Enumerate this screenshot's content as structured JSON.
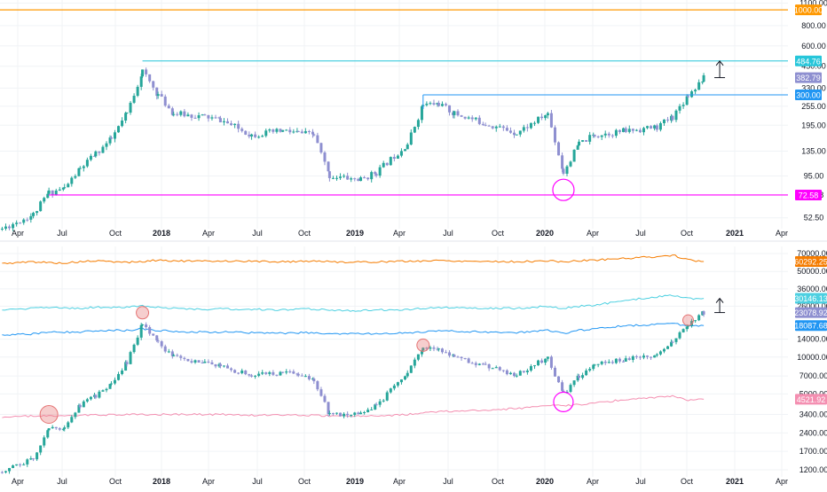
{
  "colors": {
    "bull": "#26a69a",
    "bear": "#8e8fd0",
    "orange_line": "#ff9800",
    "cyan_line": "#26c6da",
    "blue_line": "#2196f3",
    "magenta_line": "#ff00ff",
    "purple_label": "#8e8fd0",
    "bottom_orange": "#f57c00",
    "bottom_cyan": "#4dd0e1",
    "bottom_blue": "#2196f3",
    "bottom_pink": "#f48fb1",
    "gear_red": "#e57373"
  },
  "x_axis": {
    "labels": [
      {
        "text": "Apr",
        "bold": false
      },
      {
        "text": "Jul",
        "bold": false
      },
      {
        "text": "Oct",
        "bold": false
      },
      {
        "text": "2018",
        "bold": true
      },
      {
        "text": "Apr",
        "bold": false
      },
      {
        "text": "Jul",
        "bold": false
      },
      {
        "text": "Oct",
        "bold": false
      },
      {
        "text": "2019",
        "bold": true
      },
      {
        "text": "Apr",
        "bold": false
      },
      {
        "text": "Jul",
        "bold": false
      },
      {
        "text": "Oct",
        "bold": false
      },
      {
        "text": "2020",
        "bold": true
      },
      {
        "text": "Apr",
        "bold": false
      },
      {
        "text": "Jul",
        "bold": false
      },
      {
        "text": "Oct",
        "bold": false
      },
      {
        "text": "2021",
        "bold": true
      },
      {
        "text": "Apr",
        "bold": false
      }
    ]
  },
  "chart_data": [
    {
      "type": "line",
      "panel": "top",
      "scale": "log",
      "grid": true,
      "y_ticks": [
        "1100.00",
        "800.00",
        "600.00",
        "450.00",
        "330.00",
        "255.00",
        "195.00",
        "135.00",
        "95.00",
        "72.58",
        "52.50"
      ],
      "y_tick_values": [
        1100,
        800,
        600,
        450,
        330,
        255,
        195,
        135,
        95,
        72.58,
        52.5
      ],
      "ylim": [
        45,
        1150
      ],
      "price_series": {
        "x": [
          "2017-03",
          "2017-05",
          "2017-06",
          "2017-07",
          "2017-08",
          "2017-09",
          "2017-10",
          "2017-11",
          "2017-12",
          "2018-01",
          "2018-02",
          "2018-04",
          "2018-05",
          "2018-07",
          "2018-09",
          "2018-10",
          "2018-11",
          "2018-12",
          "2019-02",
          "2019-03",
          "2019-05",
          "2019-06",
          "2019-07",
          "2019-08",
          "2019-10",
          "2019-12",
          "2020-02",
          "2020-03",
          "2020-04",
          "2020-05",
          "2020-07",
          "2020-09",
          "2020-10",
          "2020-11",
          "2020-12"
        ],
        "y": [
          45,
          55,
          75,
          80,
          105,
          130,
          160,
          230,
          420,
          300,
          230,
          220,
          210,
          170,
          180,
          175,
          170,
          95,
          90,
          100,
          150,
          260,
          265,
          230,
          200,
          175,
          230,
          100,
          150,
          170,
          180,
          190,
          220,
          300,
          380
        ]
      },
      "horizontal_levels": [
        {
          "value": 1000,
          "label": "1000.00",
          "color_key": "orange_line"
        },
        {
          "value": 484.76,
          "label": "484.76",
          "color_key": "cyan_line"
        },
        {
          "value": 382.79,
          "label": "382.79",
          "color_key": "purple_label"
        },
        {
          "value": 300,
          "label": "300.00",
          "color_key": "blue_line"
        },
        {
          "value": 72.58,
          "label": "72.58",
          "color_key": "magenta_line"
        }
      ]
    },
    {
      "type": "line",
      "panel": "bottom",
      "scale": "log",
      "grid": true,
      "y_ticks": [
        "70000.00",
        "50000.00",
        "36000.00",
        "26000.00",
        "14000.00",
        "10000.00",
        "7000.00",
        "5000.00",
        "3400.00",
        "2400.00",
        "1700.00",
        "1200.00"
      ],
      "y_tick_values": [
        70000,
        50000,
        36000,
        26000,
        14000,
        10000,
        7000,
        5000,
        3400,
        2400,
        1700,
        1200
      ],
      "ylim": [
        1050,
        80000
      ],
      "price_series": {
        "x": [
          "2017-03",
          "2017-05",
          "2017-06",
          "2017-07",
          "2017-08",
          "2017-09",
          "2017-10",
          "2017-11",
          "2017-12",
          "2018-01",
          "2018-02",
          "2018-04",
          "2018-05",
          "2018-07",
          "2018-09",
          "2018-10",
          "2018-11",
          "2018-12",
          "2019-02",
          "2019-03",
          "2019-05",
          "2019-06",
          "2019-07",
          "2019-08",
          "2019-10",
          "2019-12",
          "2020-02",
          "2020-03",
          "2020-04",
          "2020-05",
          "2020-07",
          "2020-09",
          "2020-10",
          "2020-11",
          "2020-12"
        ],
        "y": [
          1150,
          1500,
          2600,
          2700,
          4000,
          4800,
          6000,
          9000,
          19000,
          13000,
          10000,
          9000,
          8500,
          7000,
          7500,
          7300,
          6500,
          3400,
          3500,
          4000,
          7500,
          12000,
          11500,
          10000,
          8500,
          7200,
          10000,
          5000,
          7000,
          9000,
          9500,
          10500,
          13500,
          18000,
          23078.92
        ]
      },
      "series": [
        {
          "name": "60292.25",
          "color_key": "bottom_orange",
          "y": [
            58000,
            60000,
            59000,
            58500,
            60000,
            61000,
            60000,
            59500,
            60000,
            62000,
            61000,
            60500,
            61000,
            60500,
            60000,
            60500,
            61000,
            60000,
            59500,
            60000,
            60500,
            61000,
            61500,
            61000,
            60500,
            60000,
            61000,
            60000,
            61000,
            62000,
            64000,
            66000,
            68000,
            62000,
            60292.25
          ]
        },
        {
          "name": "30146.13",
          "color_key": "bottom_cyan",
          "y": [
            24000,
            25000,
            25500,
            25000,
            25000,
            25500,
            25500,
            25500,
            26000,
            25500,
            25000,
            24500,
            24800,
            24500,
            24200,
            24500,
            24700,
            24000,
            24000,
            24200,
            24500,
            25000,
            25500,
            25200,
            25000,
            25000,
            26000,
            25000,
            26000,
            26500,
            29000,
            31000,
            32000,
            30000,
            30146.13
          ]
        },
        {
          "name": "18087.68",
          "color_key": "bottom_blue",
          "y": [
            15000,
            15500,
            16000,
            16000,
            16000,
            16500,
            16500,
            16500,
            17000,
            16500,
            16200,
            16000,
            16000,
            15800,
            15700,
            15800,
            15800,
            15500,
            15400,
            15500,
            15800,
            16000,
            16500,
            16300,
            16000,
            15800,
            16500,
            15500,
            16500,
            17000,
            18000,
            18500,
            18700,
            18000,
            18087.68
          ]
        },
        {
          "name": "4521.92",
          "color_key": "bottom_pink",
          "y": [
            3200,
            3300,
            3300,
            3350,
            3350,
            3350,
            3400,
            3400,
            3400,
            3400,
            3400,
            3400,
            3400,
            3350,
            3350,
            3350,
            3350,
            3300,
            3300,
            3300,
            3400,
            3500,
            3600,
            3600,
            3700,
            3800,
            4000,
            4000,
            4100,
            4200,
            4500,
            4700,
            4800,
            4400,
            4521.92
          ]
        }
      ],
      "value_labels": [
        {
          "value": 60292.25,
          "label": "60292.25",
          "color_key": "bottom_orange"
        },
        {
          "value": 30146.13,
          "label": "30146.13",
          "color_key": "bottom_cyan"
        },
        {
          "value": 23078.92,
          "label": "23078.92",
          "color_key": "purple_label"
        },
        {
          "value": 18087.68,
          "label": "18087.68",
          "color_key": "bottom_blue"
        },
        {
          "value": 4521.92,
          "label": "4521.92",
          "color_key": "bottom_pink"
        }
      ]
    }
  ]
}
